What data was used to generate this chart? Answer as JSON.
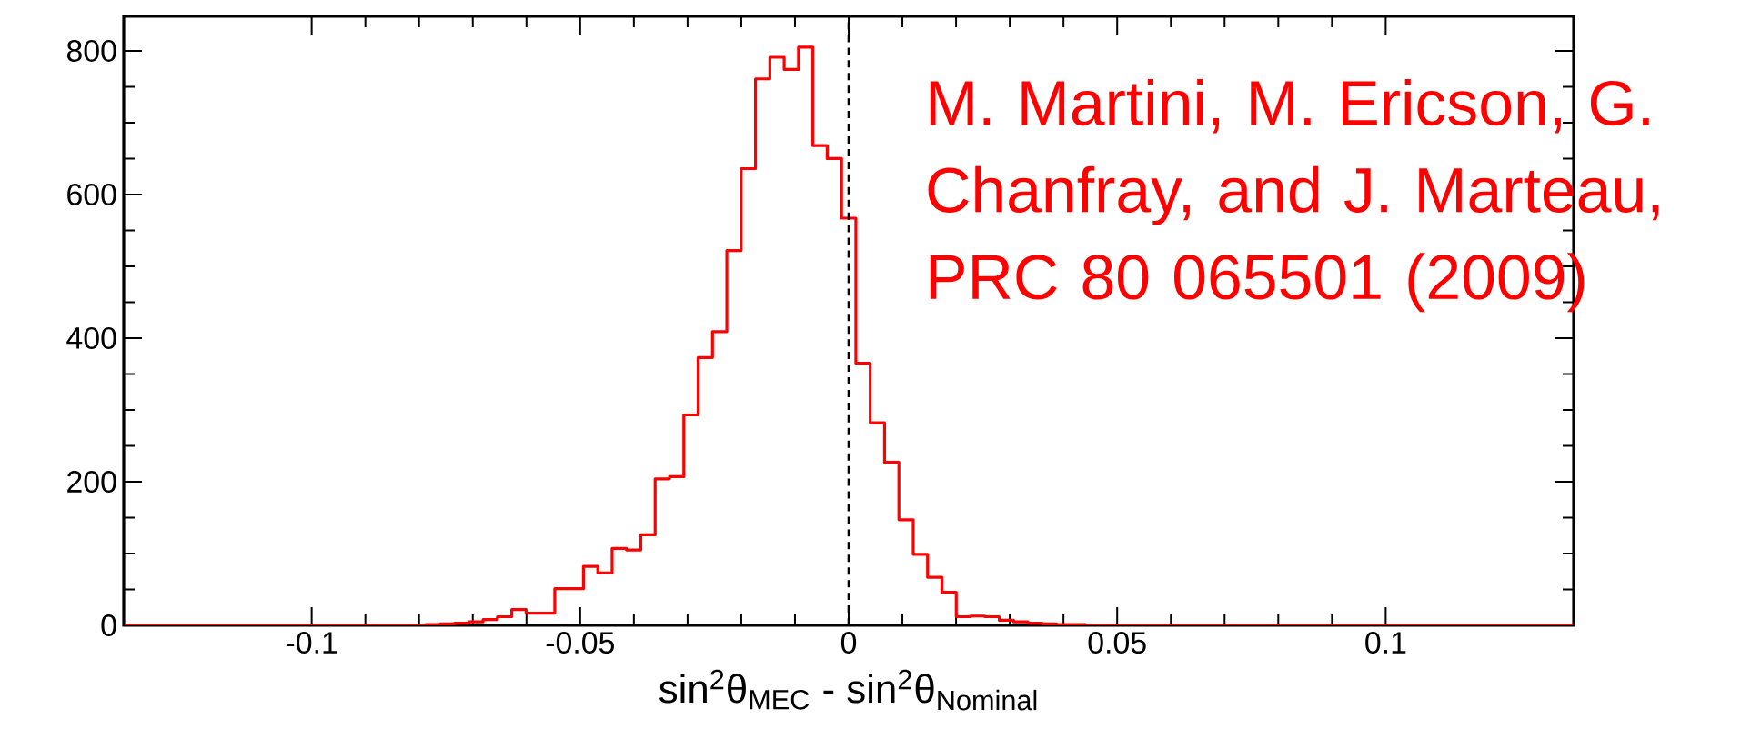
{
  "chart_data": {
    "type": "histogram",
    "xlabel": "sin$^{2}$θ$_{MEC}$ - sin$^{2}$θ$_{Nominal}$",
    "annotations": [
      "M. Martini, M. Ericson, G. Chanfray, and J. Marteau, PRC 80 065501 (2009)"
    ],
    "bins": [
      -0.13483,
      -0.13216,
      -0.12949,
      -0.12682,
      -0.12415,
      -0.12148,
      -0.11881,
      -0.11614,
      -0.11347,
      -0.1108,
      -0.10813,
      -0.10546,
      -0.10279,
      -0.10012,
      -0.09745,
      -0.09478,
      -0.09211,
      -0.08944,
      -0.08677,
      -0.0841,
      -0.08143,
      -0.07876,
      -0.07609,
      -0.07342,
      -0.07075,
      -0.06808,
      -0.06541,
      -0.06274,
      -0.06007,
      -0.0574,
      -0.05473,
      -0.05206,
      -0.04939,
      -0.04672,
      -0.04405,
      -0.04138,
      -0.03871,
      -0.03604,
      -0.03337,
      -0.0307,
      -0.02803,
      -0.02536,
      -0.02269,
      -0.02002,
      -0.01735,
      -0.01468,
      -0.01201,
      -0.00934,
      -0.00667,
      -0.004,
      -0.00133,
      0.00134,
      0.00401,
      0.00668,
      0.00935,
      0.01202,
      0.01469,
      0.01736,
      0.02003,
      0.0227,
      0.02537,
      0.02804,
      0.03071,
      0.03338,
      0.03605,
      0.03872,
      0.04139,
      0.04406,
      0.04673,
      0.0494,
      0.05207,
      0.05474,
      0.05741,
      0.06008,
      0.06275,
      0.06542,
      0.06809,
      0.07076,
      0.07343,
      0.0761,
      0.07877,
      0.08144,
      0.08411,
      0.08678,
      0.08945,
      0.09212,
      0.09479,
      0.09746,
      0.10013,
      0.1028,
      0.10547,
      0.10814,
      0.11081,
      0.11348,
      0.11615,
      0.11882,
      0.12149,
      0.12416,
      0.12683,
      0.1295,
      0.13217,
      0.13484
    ],
    "values": [
      0,
      0,
      0,
      0,
      0,
      0,
      0,
      0,
      0,
      0,
      0,
      0,
      0,
      0,
      0,
      0,
      0,
      0,
      0,
      0,
      0,
      1,
      2,
      3,
      5,
      8,
      12,
      22,
      17,
      17,
      51,
      51,
      82,
      73,
      107,
      105,
      126,
      204,
      207,
      293,
      373,
      409,
      522,
      636,
      761,
      791,
      774,
      805,
      668,
      650,
      567,
      365,
      282,
      227,
      147,
      99,
      67,
      46,
      12,
      13,
      12,
      7,
      5,
      3,
      2,
      1,
      1,
      0,
      0,
      0,
      0,
      0,
      0,
      0,
      0,
      0,
      0,
      0,
      0,
      0,
      0,
      0,
      0,
      0,
      0,
      0,
      0,
      0,
      0,
      0,
      0,
      0,
      0,
      0,
      0,
      0,
      0,
      0,
      0,
      0,
      0
    ],
    "color": "#ff0000",
    "xlim": [
      -0.135,
      0.135
    ],
    "ylim": [
      0,
      848
    ],
    "xticks": [
      -0.1,
      -0.05,
      0,
      0.05,
      0.1
    ],
    "yticks": [
      0,
      200,
      400,
      600,
      800
    ],
    "ref_lines": [
      {
        "axis": "x",
        "value": 0,
        "color": "#000000",
        "line_style": "dashed"
      }
    ],
    "grid": false
  }
}
